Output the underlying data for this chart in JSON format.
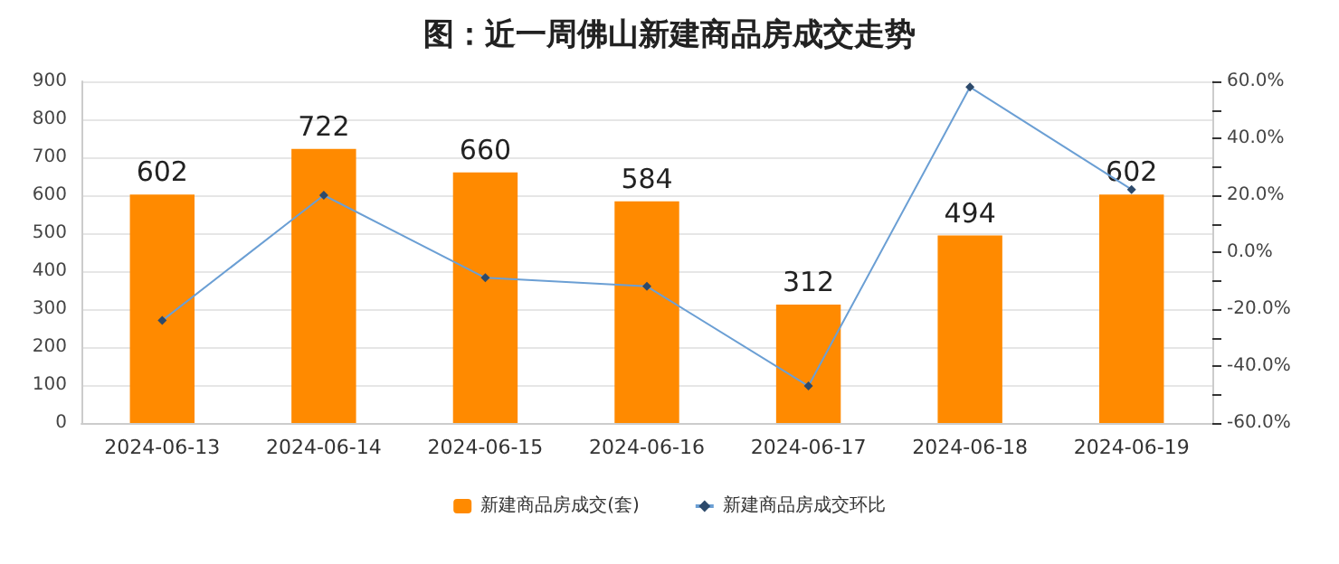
{
  "chart_data": {
    "type": "bar",
    "title": "图：近一周佛山新建商品房成交走势",
    "categories": [
      "2024-06-13",
      "2024-06-14",
      "2024-06-15",
      "2024-06-16",
      "2024-06-17",
      "2024-06-18",
      "2024-06-19"
    ],
    "series": [
      {
        "name": "新建商品房成交(套)",
        "color": "#ff8a00",
        "values": [
          602,
          722,
          660,
          584,
          312,
          494,
          602
        ],
        "value_labels": [
          "602",
          "722",
          "660",
          "584",
          "312",
          "494",
          "602"
        ]
      },
      {
        "name": "新建商品房成交环比",
        "type": "line",
        "axis": "y2",
        "color": "#6b9fd4",
        "marker": "diamond",
        "values": [
          -24,
          20,
          -9,
          -12,
          -47,
          58,
          22
        ]
      }
    ],
    "ylim": [
      0,
      900
    ],
    "yticks": [
      0,
      100,
      200,
      300,
      400,
      500,
      600,
      700,
      800,
      900
    ],
    "y2lim": [
      -60,
      60
    ],
    "y2ticks": [
      {
        "value": -60,
        "label": "-60.0%"
      },
      {
        "value": -50,
        "label": null
      },
      {
        "value": -40,
        "label": "-40.0%"
      },
      {
        "value": -30,
        "label": null
      },
      {
        "value": -20,
        "label": "-20.0%"
      },
      {
        "value": -10,
        "label": null
      },
      {
        "value": 0,
        "label": "0.0%"
      },
      {
        "value": 10,
        "label": null
      },
      {
        "value": 20,
        "label": "20.0%"
      },
      {
        "value": 30,
        "label": null
      },
      {
        "value": 40,
        "label": "40.0%"
      },
      {
        "value": 50,
        "label": null
      },
      {
        "value": 60,
        "label": "60.0%"
      }
    ],
    "grid": "y",
    "legend": "bottom"
  }
}
